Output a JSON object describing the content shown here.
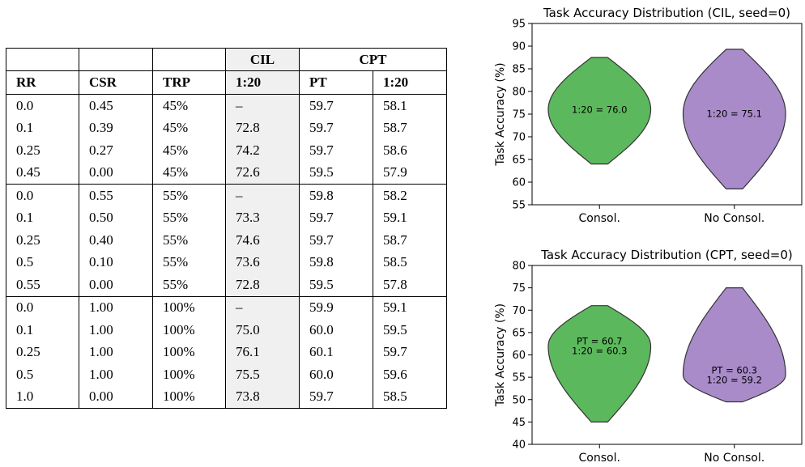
{
  "table": {
    "group_headers": [
      "",
      "",
      "",
      "CIL",
      "CPT"
    ],
    "columns": [
      "RR",
      "CSR",
      "TRP",
      "1:20",
      "PT",
      "1:20"
    ],
    "rows": [
      [
        "0.0",
        "0.45",
        "45%",
        "–",
        "59.7",
        "58.1"
      ],
      [
        "0.1",
        "0.39",
        "45%",
        "72.8",
        "59.7",
        "58.7"
      ],
      [
        "0.25",
        "0.27",
        "45%",
        "74.2",
        "59.7",
        "58.6"
      ],
      [
        "0.45",
        "0.00",
        "45%",
        "72.6",
        "59.5",
        "57.9"
      ],
      [
        "0.0",
        "0.55",
        "55%",
        "–",
        "59.8",
        "58.2"
      ],
      [
        "0.1",
        "0.50",
        "55%",
        "73.3",
        "59.7",
        "59.1"
      ],
      [
        "0.25",
        "0.40",
        "55%",
        "74.6",
        "59.7",
        "58.7"
      ],
      [
        "0.5",
        "0.10",
        "55%",
        "73.6",
        "59.8",
        "58.5"
      ],
      [
        "0.55",
        "0.00",
        "55%",
        "72.8",
        "59.5",
        "57.8"
      ],
      [
        "0.0",
        "1.00",
        "100%",
        "–",
        "59.9",
        "59.1"
      ],
      [
        "0.1",
        "1.00",
        "100%",
        "75.0",
        "60.0",
        "59.5"
      ],
      [
        "0.25",
        "1.00",
        "100%",
        "76.1",
        "60.1",
        "59.7"
      ],
      [
        "0.5",
        "1.00",
        "100%",
        "75.5",
        "60.0",
        "59.6"
      ],
      [
        "1.0",
        "0.00",
        "100%",
        "73.8",
        "59.7",
        "58.5"
      ]
    ]
  },
  "chart_data": [
    {
      "type": "violin",
      "title": "Task Accuracy Distribution (CIL, seed=0)",
      "xlabel": "",
      "ylabel": "Task Accuracy (%)",
      "ylim": [
        55,
        95
      ],
      "yticks": [
        "55",
        "60",
        "65",
        "70",
        "75",
        "80",
        "85",
        "90",
        "95"
      ],
      "categories": [
        "Consol.",
        "No Consol."
      ],
      "grid": false,
      "series": [
        {
          "category": "Consol.",
          "color": "#5cb85c",
          "min": 64.0,
          "max": 87.5,
          "widest_at": 76.0,
          "annotations": [
            "1:20 = 76.0"
          ]
        },
        {
          "category": "No Consol.",
          "color": "#a98bca",
          "min": 58.5,
          "max": 89.3,
          "widest_at": 75.1,
          "annotations": [
            "1:20 = 75.1"
          ]
        }
      ]
    },
    {
      "type": "violin",
      "title": "Task Accuracy Distribution (CPT, seed=0)",
      "xlabel": "",
      "ylabel": "Task Accuracy (%)",
      "ylim": [
        40,
        80
      ],
      "yticks": [
        "40",
        "45",
        "50",
        "55",
        "60",
        "65",
        "70",
        "75",
        "80"
      ],
      "categories": [
        "Consol.",
        "No Consol."
      ],
      "grid": false,
      "series": [
        {
          "category": "Consol.",
          "color": "#5cb85c",
          "min": 45.0,
          "max": 71.0,
          "widest_at": 62.0,
          "annotations": [
            "PT = 60.7",
            "1:20 = 60.3"
          ]
        },
        {
          "category": "No Consol.",
          "color": "#a98bca",
          "min": 49.5,
          "max": 75.0,
          "widest_at": 55.5,
          "annotations": [
            "PT = 60.3",
            "1:20 = 59.2"
          ]
        }
      ]
    }
  ]
}
